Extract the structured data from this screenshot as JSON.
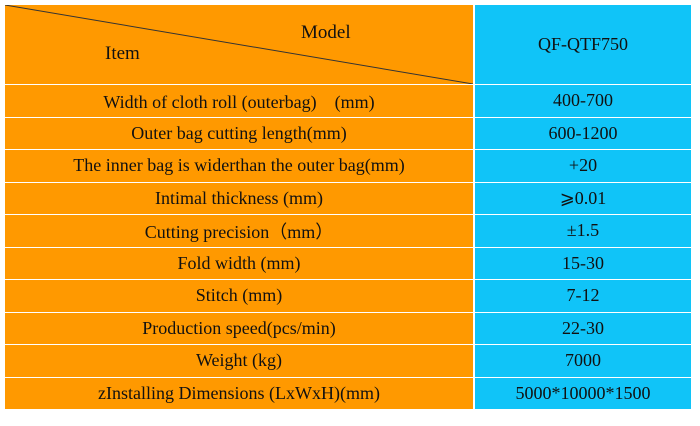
{
  "header": {
    "model_label": "Model",
    "item_label": "Item",
    "model_value": "QF-QTF750"
  },
  "colors": {
    "item_column": "#ff9900",
    "value_column": "#10c4f8",
    "grid_lines": "#ffffff"
  },
  "rows": [
    {
      "item": "Width of cloth roll (outerbag)　(mm)",
      "value": "400-700"
    },
    {
      "item": "Outer bag cutting length(mm)",
      "value": "600-1200"
    },
    {
      "item": "The inner bag is widerthan the outer bag(mm)",
      "value": "+20"
    },
    {
      "item": "Intimal thickness (mm)",
      "value": "⩾0.01"
    },
    {
      "item": "Cutting precision（mm）",
      "value": "±1.5"
    },
    {
      "item": "Fold width (mm)",
      "value": "15-30"
    },
    {
      "item": "Stitch (mm)",
      "value": "7-12"
    },
    {
      "item": "Production speed(pcs/min)",
      "value": "22-30"
    },
    {
      "item": "Weight (kg)",
      "value": "7000"
    },
    {
      "item": "zInstalling Dimensions (LxWxH)(mm)",
      "value": "5000*10000*1500"
    }
  ]
}
